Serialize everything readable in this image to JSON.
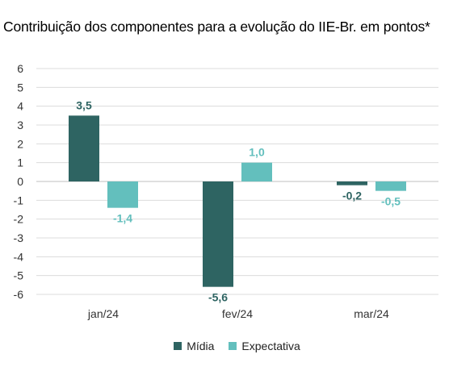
{
  "chart_data": {
    "type": "bar",
    "title": "Contribuição dos componentes para a evolução do IIE-Br. em pontos*",
    "categories": [
      "jan/24",
      "fev/24",
      "mar/24"
    ],
    "series": [
      {
        "name": "Mídia",
        "values": [
          3.5,
          -5.6,
          -0.2
        ],
        "labels": [
          "3,5",
          "-5,6",
          "-0,2"
        ],
        "color": "#2e6462"
      },
      {
        "name": "Expectativa",
        "values": [
          -1.4,
          1.0,
          -0.5
        ],
        "labels": [
          "-1,4",
          "1,0",
          "-0,5"
        ],
        "color": "#63bfbd"
      }
    ],
    "ylim": [
      -6,
      6
    ],
    "yticks": [
      "-6",
      "-5",
      "-4",
      "-3",
      "-2",
      "-1",
      "0",
      "1",
      "2",
      "3",
      "4",
      "5",
      "6"
    ],
    "grid": true,
    "legend_position": "bottom"
  }
}
